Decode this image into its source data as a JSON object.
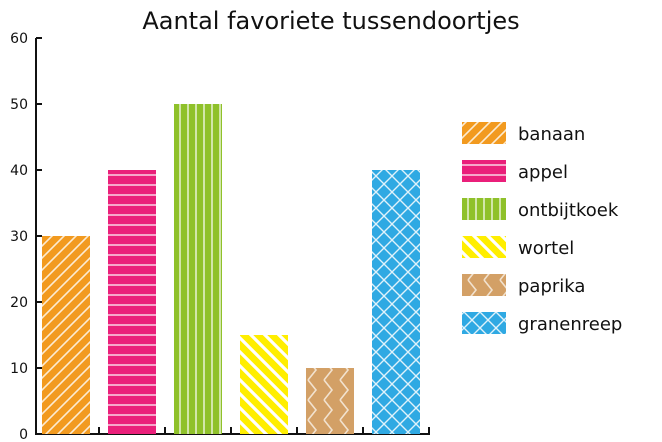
{
  "chart_data": {
    "type": "bar",
    "title": "Aantal favoriete tussendoortjes",
    "xlabel": "",
    "ylabel": "",
    "ylim": [
      0,
      60
    ],
    "yticks": [
      0,
      10,
      20,
      30,
      40,
      50,
      60
    ],
    "categories": [
      "banaan",
      "appel",
      "ontbijtkoek",
      "wortel",
      "paprika",
      "granenreep"
    ],
    "values": [
      30,
      40,
      50,
      15,
      10,
      40
    ],
    "colors": [
      "#f29a1f",
      "#ea1f7a",
      "#8fc12a",
      "#ffee00",
      "#d3a066",
      "#2fa9e3"
    ],
    "patterns": [
      "diagonal-up",
      "horizontal",
      "vertical",
      "diagonal-down",
      "zigzag",
      "diamond"
    ],
    "legend": {
      "position": "right",
      "entries": [
        "banaan",
        "appel",
        "ontbijtkoek",
        "wortel",
        "paprika",
        "granenreep"
      ]
    },
    "grid": false
  }
}
